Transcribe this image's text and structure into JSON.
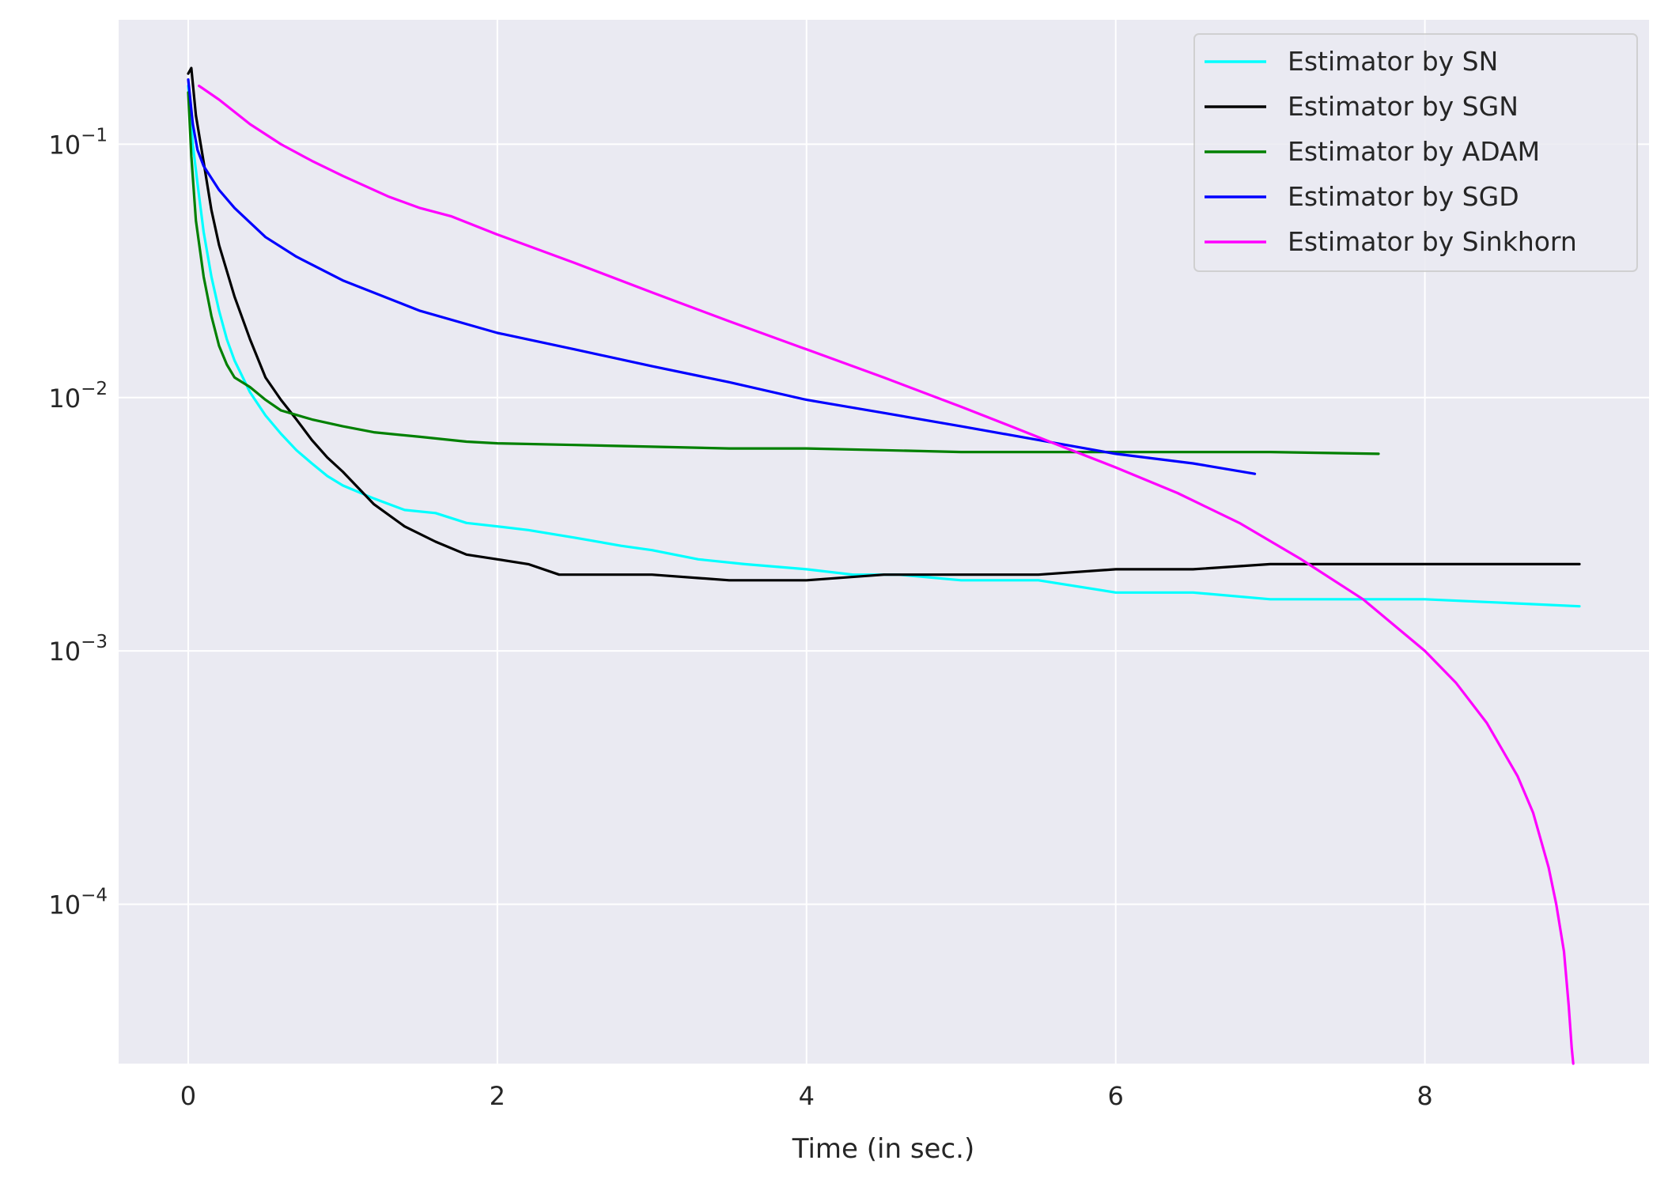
{
  "chart_data": {
    "type": "line",
    "title": "",
    "xlabel": "Time (in sec.)",
    "ylabel": "",
    "yscale": "log",
    "xlim": [
      -0.45,
      9.45
    ],
    "ylim": [
      2.35e-05,
      0.31
    ],
    "grid": true,
    "legend_position": "top-right",
    "colors": {
      "background": "#eaeaf2",
      "grid": "#ffffff",
      "text": "#262626"
    },
    "x_ticks": [
      {
        "value": 0,
        "label": "0"
      },
      {
        "value": 2,
        "label": "2"
      },
      {
        "value": 4,
        "label": "4"
      },
      {
        "value": 6,
        "label": "6"
      },
      {
        "value": 8,
        "label": "8"
      }
    ],
    "y_ticks": [
      {
        "value": 0.1,
        "base": "10",
        "exp": "−1"
      },
      {
        "value": 0.01,
        "base": "10",
        "exp": "−2"
      },
      {
        "value": 0.001,
        "base": "10",
        "exp": "−3"
      },
      {
        "value": 0.0001,
        "base": "10",
        "exp": "−4"
      }
    ],
    "series": [
      {
        "name": "Estimator by SN",
        "color": "#00ffff",
        "x": [
          0,
          0.03,
          0.06,
          0.1,
          0.15,
          0.2,
          0.25,
          0.3,
          0.4,
          0.5,
          0.6,
          0.7,
          0.8,
          0.9,
          1.0,
          1.2,
          1.4,
          1.6,
          1.8,
          2.0,
          2.2,
          2.5,
          2.8,
          3.0,
          3.3,
          3.6,
          4.0,
          4.3,
          4.6,
          5.0,
          5.5,
          6.0,
          6.5,
          7.0,
          7.5,
          8.0,
          8.5,
          9.0
        ],
        "y": [
          0.17,
          0.1,
          0.07,
          0.045,
          0.03,
          0.022,
          0.017,
          0.014,
          0.0105,
          0.0085,
          0.0072,
          0.0062,
          0.0055,
          0.0049,
          0.0045,
          0.004,
          0.0036,
          0.0035,
          0.0032,
          0.0031,
          0.003,
          0.0028,
          0.0026,
          0.0025,
          0.0023,
          0.0022,
          0.0021,
          0.002,
          0.002,
          0.0019,
          0.0019,
          0.0017,
          0.0017,
          0.0016,
          0.0016,
          0.0016,
          0.00155,
          0.0015
        ]
      },
      {
        "name": "Estimator by SGN",
        "color": "#000000",
        "x": [
          0,
          0.02,
          0.05,
          0.1,
          0.15,
          0.2,
          0.3,
          0.4,
          0.5,
          0.6,
          0.7,
          0.8,
          0.9,
          1.0,
          1.1,
          1.2,
          1.4,
          1.6,
          1.8,
          2.0,
          2.2,
          2.4,
          2.6,
          3.0,
          3.5,
          4.0,
          4.5,
          5.0,
          5.5,
          6.0,
          6.5,
          7.0,
          7.5,
          8.0,
          8.5,
          9.0
        ],
        "y": [
          0.19,
          0.2,
          0.13,
          0.085,
          0.055,
          0.04,
          0.025,
          0.017,
          0.012,
          0.0098,
          0.0082,
          0.0068,
          0.0058,
          0.0051,
          0.0044,
          0.0038,
          0.0031,
          0.0027,
          0.0024,
          0.0023,
          0.0022,
          0.002,
          0.002,
          0.002,
          0.0019,
          0.0019,
          0.002,
          0.002,
          0.002,
          0.0021,
          0.0021,
          0.0022,
          0.0022,
          0.0022,
          0.0022,
          0.0022
        ]
      },
      {
        "name": "Estimator by ADAM",
        "color": "#008000",
        "x": [
          0,
          0.02,
          0.05,
          0.1,
          0.15,
          0.2,
          0.25,
          0.3,
          0.4,
          0.5,
          0.6,
          0.8,
          1.0,
          1.2,
          1.5,
          1.8,
          2.0,
          2.5,
          3.0,
          3.5,
          4.0,
          4.5,
          5.0,
          5.5,
          6.0,
          6.5,
          7.0,
          7.7
        ],
        "y": [
          0.16,
          0.09,
          0.05,
          0.03,
          0.021,
          0.016,
          0.0135,
          0.012,
          0.011,
          0.0098,
          0.0089,
          0.0082,
          0.0077,
          0.0073,
          0.007,
          0.0067,
          0.0066,
          0.0065,
          0.0064,
          0.0063,
          0.0063,
          0.0062,
          0.0061,
          0.0061,
          0.0061,
          0.0061,
          0.0061,
          0.006
        ]
      },
      {
        "name": "Estimator by SGD",
        "color": "#0000ff",
        "x": [
          0,
          0.03,
          0.06,
          0.1,
          0.2,
          0.3,
          0.5,
          0.7,
          1.0,
          1.5,
          2.0,
          2.5,
          3.0,
          3.5,
          4.0,
          4.5,
          5.0,
          5.5,
          6.0,
          6.5,
          6.9
        ],
        "y": [
          0.18,
          0.12,
          0.095,
          0.082,
          0.066,
          0.056,
          0.043,
          0.036,
          0.029,
          0.022,
          0.018,
          0.0155,
          0.0133,
          0.0115,
          0.0098,
          0.0087,
          0.0077,
          0.0068,
          0.006,
          0.0055,
          0.005
        ]
      },
      {
        "name": "Estimator by Sinkhorn",
        "color": "#ff00ff",
        "x": [
          0.07,
          0.2,
          0.4,
          0.6,
          0.8,
          1.0,
          1.3,
          1.5,
          1.7,
          2.0,
          2.5,
          3.0,
          3.5,
          4.0,
          4.5,
          5.0,
          5.3,
          5.6,
          6.0,
          6.4,
          6.8,
          7.2,
          7.6,
          8.0,
          8.2,
          8.4,
          8.6,
          8.7,
          8.8,
          8.85,
          8.9,
          8.93,
          8.95,
          8.96
        ],
        "y": [
          0.17,
          0.15,
          0.12,
          0.1,
          0.086,
          0.075,
          0.062,
          0.056,
          0.052,
          0.044,
          0.034,
          0.026,
          0.02,
          0.0155,
          0.012,
          0.0092,
          0.0078,
          0.0066,
          0.0053,
          0.0042,
          0.0032,
          0.0023,
          0.0016,
          0.001,
          0.00075,
          0.00052,
          0.00032,
          0.00023,
          0.00014,
          0.0001,
          6.5e-05,
          4e-05,
          2.7e-05,
          2.35e-05
        ]
      }
    ]
  }
}
